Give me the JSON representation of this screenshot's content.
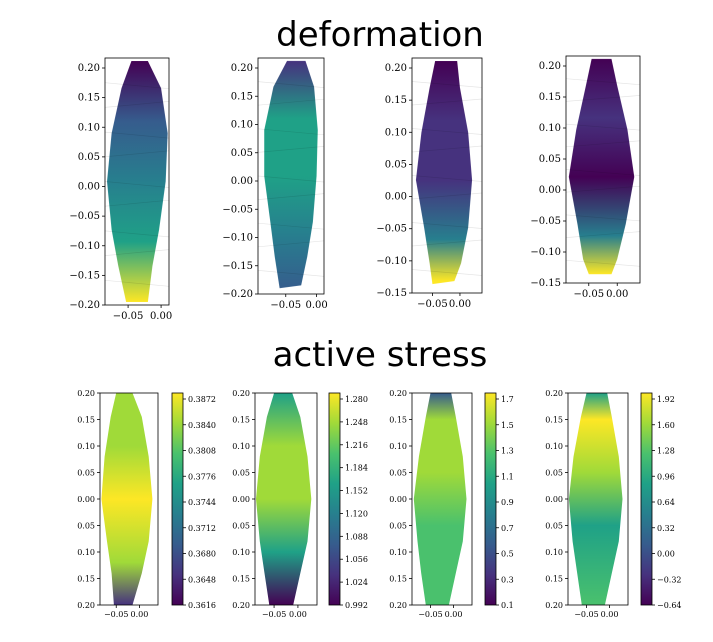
{
  "sections": [
    {
      "title": "deformation"
    },
    {
      "title": "active stress"
    }
  ],
  "colormap": [
    "#440154",
    "#46327e",
    "#365c8d",
    "#277f8e",
    "#1fa187",
    "#4ac16d",
    "#a0da39",
    "#fde725"
  ],
  "chart_data": [
    {
      "type": "heatmap",
      "section": "deformation",
      "panel": 1,
      "title": "",
      "xlabel": "",
      "ylabel": "",
      "xticks": [
        "−0.05",
        "0.00"
      ],
      "yticks": [
        "0.20",
        "0.15",
        "0.10",
        "0.05",
        "0.00",
        "−0.05",
        "−0.10",
        "−0.15",
        "−0.20"
      ],
      "xlim": [
        -0.085,
        0.012
      ],
      "ylim": [
        -0.205,
        0.205
      ],
      "outline": [
        [
          -0.045,
          0.2
        ],
        [
          -0.02,
          0.2
        ],
        [
          0.0,
          0.155
        ],
        [
          0.01,
          0.08
        ],
        [
          0.007,
          0.0
        ],
        [
          -0.003,
          -0.08
        ],
        [
          -0.013,
          -0.14
        ],
        [
          -0.02,
          -0.2
        ],
        [
          -0.053,
          -0.2
        ],
        [
          -0.065,
          -0.14
        ],
        [
          -0.075,
          -0.08
        ],
        [
          -0.082,
          0.0
        ],
        [
          -0.075,
          0.08
        ],
        [
          -0.06,
          0.155
        ]
      ],
      "field": [
        {
          "y": 0.2,
          "v": 0.0
        },
        {
          "y": 0.1,
          "v": 0.25
        },
        {
          "y": 0.0,
          "v": 0.45
        },
        {
          "y": -0.1,
          "v": 0.62
        },
        {
          "y": -0.2,
          "v": 1.0
        }
      ]
    },
    {
      "type": "heatmap",
      "section": "deformation",
      "panel": 2,
      "title": "",
      "xlabel": "",
      "ylabel": "",
      "xticks": [
        "−0.05",
        "0.00"
      ],
      "yticks": [
        "0.20",
        "0.15",
        "0.10",
        "0.05",
        "0.00",
        "−0.05",
        "−0.10",
        "−0.15",
        "−0.20"
      ],
      "xlim": [
        -0.095,
        0.012
      ],
      "ylim": [
        -0.205,
        0.205
      ],
      "outline": [
        [
          -0.048,
          0.2
        ],
        [
          -0.018,
          0.2
        ],
        [
          -0.004,
          0.155
        ],
        [
          0.002,
          0.08
        ],
        [
          0.0,
          0.0
        ],
        [
          -0.006,
          -0.08
        ],
        [
          -0.015,
          -0.14
        ],
        [
          -0.025,
          -0.19
        ],
        [
          -0.06,
          -0.195
        ],
        [
          -0.068,
          -0.14
        ],
        [
          -0.075,
          -0.08
        ],
        [
          -0.085,
          0.0
        ],
        [
          -0.085,
          0.08
        ],
        [
          -0.07,
          0.155
        ]
      ],
      "field": [
        {
          "y": 0.2,
          "v": 0.1
        },
        {
          "y": 0.1,
          "v": 0.6
        },
        {
          "y": 0.0,
          "v": 0.6
        },
        {
          "y": -0.1,
          "v": 0.42
        },
        {
          "y": -0.2,
          "v": 0.25
        }
      ]
    },
    {
      "type": "heatmap",
      "section": "deformation",
      "panel": 3,
      "title": "",
      "xlabel": "",
      "ylabel": "",
      "xticks": [
        "−0.05",
        "0.00"
      ],
      "yticks": [
        "0.20",
        "0.15",
        "0.10",
        "0.05",
        "0.00",
        "−0.05",
        "−0.10",
        "−0.15"
      ],
      "xlim": [
        -0.087,
        0.04
      ],
      "ylim": [
        -0.19,
        0.205
      ],
      "outline": [
        [
          -0.045,
          0.2
        ],
        [
          -0.005,
          0.2
        ],
        [
          0.0,
          0.155
        ],
        [
          0.015,
          0.08
        ],
        [
          0.022,
          0.0
        ],
        [
          0.015,
          -0.08
        ],
        [
          0.002,
          -0.14
        ],
        [
          -0.01,
          -0.17
        ],
        [
          -0.05,
          -0.175
        ],
        [
          -0.055,
          -0.14
        ],
        [
          -0.065,
          -0.08
        ],
        [
          -0.08,
          0.0
        ],
        [
          -0.07,
          0.08
        ],
        [
          -0.055,
          0.155
        ]
      ],
      "field": [
        {
          "y": 0.2,
          "v": 0.0
        },
        {
          "y": 0.1,
          "v": 0.18
        },
        {
          "y": 0.0,
          "v": 0.12
        },
        {
          "y": -0.1,
          "v": 0.38
        },
        {
          "y": -0.17,
          "v": 1.0
        }
      ]
    },
    {
      "type": "heatmap",
      "section": "deformation",
      "panel": 4,
      "title": "",
      "xlabel": "",
      "ylabel": "",
      "xticks": [
        "−0.05",
        "0.00"
      ],
      "yticks": [
        "0.20",
        "0.15",
        "0.10",
        "0.05",
        "0.00",
        "−0.05",
        "−0.10",
        "−0.15"
      ],
      "xlim": [
        -0.09,
        0.04
      ],
      "ylim": [
        -0.18,
        0.205
      ],
      "outline": [
        [
          -0.045,
          0.2
        ],
        [
          -0.01,
          0.2
        ],
        [
          0.0,
          0.155
        ],
        [
          0.018,
          0.08
        ],
        [
          0.03,
          0.0
        ],
        [
          0.015,
          -0.08
        ],
        [
          0.0,
          -0.14
        ],
        [
          -0.01,
          -0.165
        ],
        [
          -0.05,
          -0.165
        ],
        [
          -0.06,
          -0.14
        ],
        [
          -0.07,
          -0.08
        ],
        [
          -0.085,
          0.0
        ],
        [
          -0.072,
          0.08
        ],
        [
          -0.055,
          0.155
        ]
      ],
      "field": [
        {
          "y": 0.2,
          "v": 0.0
        },
        {
          "y": 0.1,
          "v": 0.18
        },
        {
          "y": 0.0,
          "v": 0.05
        },
        {
          "y": -0.1,
          "v": 0.45
        },
        {
          "y": -0.165,
          "v": 1.0
        }
      ]
    },
    {
      "type": "heatmap",
      "section": "active stress",
      "panel": 1,
      "title": "",
      "xlabel": "",
      "ylabel": "",
      "xticks": [
        "−0.05",
        "0.00"
      ],
      "yticks": [
        "0.20",
        "0.15",
        "0.10",
        "0.05",
        "0.00",
        "0.05",
        "0.10",
        "0.15",
        "0.20"
      ],
      "xlim": [
        -0.085,
        0.04
      ],
      "ylim": [
        -0.2,
        0.2
      ],
      "colorbar": {
        "ticks": [
          "0.3872",
          "0.3840",
          "0.3808",
          "0.3776",
          "0.3744",
          "0.3712",
          "0.3680",
          "0.3648",
          "0.3616"
        ],
        "range": [
          0.3616,
          0.3885
        ]
      },
      "outline": [
        [
          -0.05,
          0.2
        ],
        [
          -0.015,
          0.2
        ],
        [
          0.005,
          0.155
        ],
        [
          0.02,
          0.08
        ],
        [
          0.028,
          0.0
        ],
        [
          0.02,
          -0.08
        ],
        [
          0.005,
          -0.14
        ],
        [
          -0.015,
          -0.2
        ],
        [
          -0.055,
          -0.2
        ],
        [
          -0.06,
          -0.14
        ],
        [
          -0.07,
          -0.08
        ],
        [
          -0.082,
          0.0
        ],
        [
          -0.075,
          0.08
        ],
        [
          -0.062,
          0.155
        ]
      ],
      "field": [
        {
          "y": 0.2,
          "v": 0.88
        },
        {
          "y": 0.1,
          "v": 0.92
        },
        {
          "y": 0.0,
          "v": 0.95
        },
        {
          "y": -0.12,
          "v": 0.85
        },
        {
          "y": -0.2,
          "v": 0.2
        }
      ]
    },
    {
      "type": "heatmap",
      "section": "active stress",
      "panel": 2,
      "title": "",
      "xlabel": "",
      "ylabel": "",
      "xticks": [
        "−0.05",
        "0.00"
      ],
      "yticks": [
        "0.20",
        "0.15",
        "0.10",
        "0.05",
        "0.00",
        "0.05",
        "0.10",
        "0.15",
        "0.20"
      ],
      "xlim": [
        -0.09,
        0.04
      ],
      "ylim": [
        -0.2,
        0.2
      ],
      "colorbar": {
        "ticks": [
          "1.280",
          "1.248",
          "1.216",
          "1.184",
          "1.152",
          "1.120",
          "1.088",
          "1.056",
          "1.024",
          "0.992"
        ],
        "range": [
          0.992,
          1.28
        ]
      },
      "outline": [
        [
          -0.05,
          0.2
        ],
        [
          -0.012,
          0.2
        ],
        [
          0.005,
          0.155
        ],
        [
          0.02,
          0.08
        ],
        [
          0.028,
          0.0
        ],
        [
          0.02,
          -0.08
        ],
        [
          0.005,
          -0.14
        ],
        [
          -0.01,
          -0.2
        ],
        [
          -0.06,
          -0.2
        ],
        [
          -0.07,
          -0.14
        ],
        [
          -0.08,
          -0.08
        ],
        [
          -0.088,
          0.0
        ],
        [
          -0.08,
          0.08
        ],
        [
          -0.065,
          0.155
        ]
      ],
      "field": [
        {
          "y": 0.2,
          "v": 0.5
        },
        {
          "y": 0.1,
          "v": 0.9
        },
        {
          "y": 0.0,
          "v": 0.8
        },
        {
          "y": -0.1,
          "v": 0.55
        },
        {
          "y": -0.2,
          "v": 0.05
        }
      ]
    },
    {
      "type": "heatmap",
      "section": "active stress",
      "panel": 3,
      "title": "",
      "xlabel": "",
      "ylabel": "",
      "xticks": [
        "−0.05",
        "0.00"
      ],
      "yticks": [
        "0.20",
        "0.15",
        "0.10",
        "0.05",
        "0.00",
        "0.05",
        "0.10",
        "0.15",
        "0.20"
      ],
      "xlim": [
        -0.09,
        0.04
      ],
      "ylim": [
        -0.2,
        0.2
      ],
      "colorbar": {
        "ticks": [
          "1.7",
          "1.5",
          "1.3",
          "1.1",
          "0.9",
          "0.7",
          "0.5",
          "0.3",
          "0.1"
        ],
        "range": [
          0.1,
          1.8
        ]
      },
      "outline": [
        [
          -0.05,
          0.2
        ],
        [
          -0.005,
          0.2
        ],
        [
          0.005,
          0.155
        ],
        [
          0.02,
          0.08
        ],
        [
          0.028,
          0.0
        ],
        [
          0.02,
          -0.08
        ],
        [
          0.005,
          -0.14
        ],
        [
          -0.01,
          -0.2
        ],
        [
          -0.06,
          -0.2
        ],
        [
          -0.07,
          -0.14
        ],
        [
          -0.078,
          -0.08
        ],
        [
          -0.086,
          0.0
        ],
        [
          -0.075,
          0.08
        ],
        [
          -0.06,
          0.155
        ]
      ],
      "field": [
        {
          "y": 0.2,
          "v": 0.35
        },
        {
          "y": 0.15,
          "v": 0.9
        },
        {
          "y": 0.05,
          "v": 0.82
        },
        {
          "y": -0.05,
          "v": 0.72
        },
        {
          "y": -0.2,
          "v": 0.68
        }
      ]
    },
    {
      "type": "heatmap",
      "section": "active stress",
      "panel": 4,
      "title": "",
      "xlabel": "",
      "ylabel": "",
      "xticks": [
        "−0.05",
        "0.00"
      ],
      "yticks": [
        "0.20",
        "0.15",
        "0.10",
        "0.05",
        "0.00",
        "0.05",
        "0.10",
        "0.15",
        "0.20"
      ],
      "xlim": [
        -0.09,
        0.04
      ],
      "ylim": [
        -0.2,
        0.2
      ],
      "colorbar": {
        "ticks": [
          "1.92",
          "1.60",
          "1.28",
          "0.96",
          "0.64",
          "0.32",
          "0.00",
          "−0.32",
          "−0.64"
        ],
        "range": [
          -0.7,
          2.0
        ]
      },
      "outline": [
        [
          -0.05,
          0.2
        ],
        [
          -0.005,
          0.2
        ],
        [
          0.005,
          0.155
        ],
        [
          0.02,
          0.08
        ],
        [
          0.028,
          0.0
        ],
        [
          0.02,
          -0.08
        ],
        [
          0.005,
          -0.14
        ],
        [
          -0.01,
          -0.2
        ],
        [
          -0.06,
          -0.2
        ],
        [
          -0.07,
          -0.14
        ],
        [
          -0.08,
          -0.08
        ],
        [
          -0.088,
          0.0
        ],
        [
          -0.078,
          0.08
        ],
        [
          -0.062,
          0.155
        ]
      ],
      "field": [
        {
          "y": 0.2,
          "v": 0.5
        },
        {
          "y": 0.15,
          "v": 0.95
        },
        {
          "y": 0.05,
          "v": 0.82
        },
        {
          "y": -0.05,
          "v": 0.62
        },
        {
          "y": -0.2,
          "v": 0.78
        }
      ]
    }
  ]
}
